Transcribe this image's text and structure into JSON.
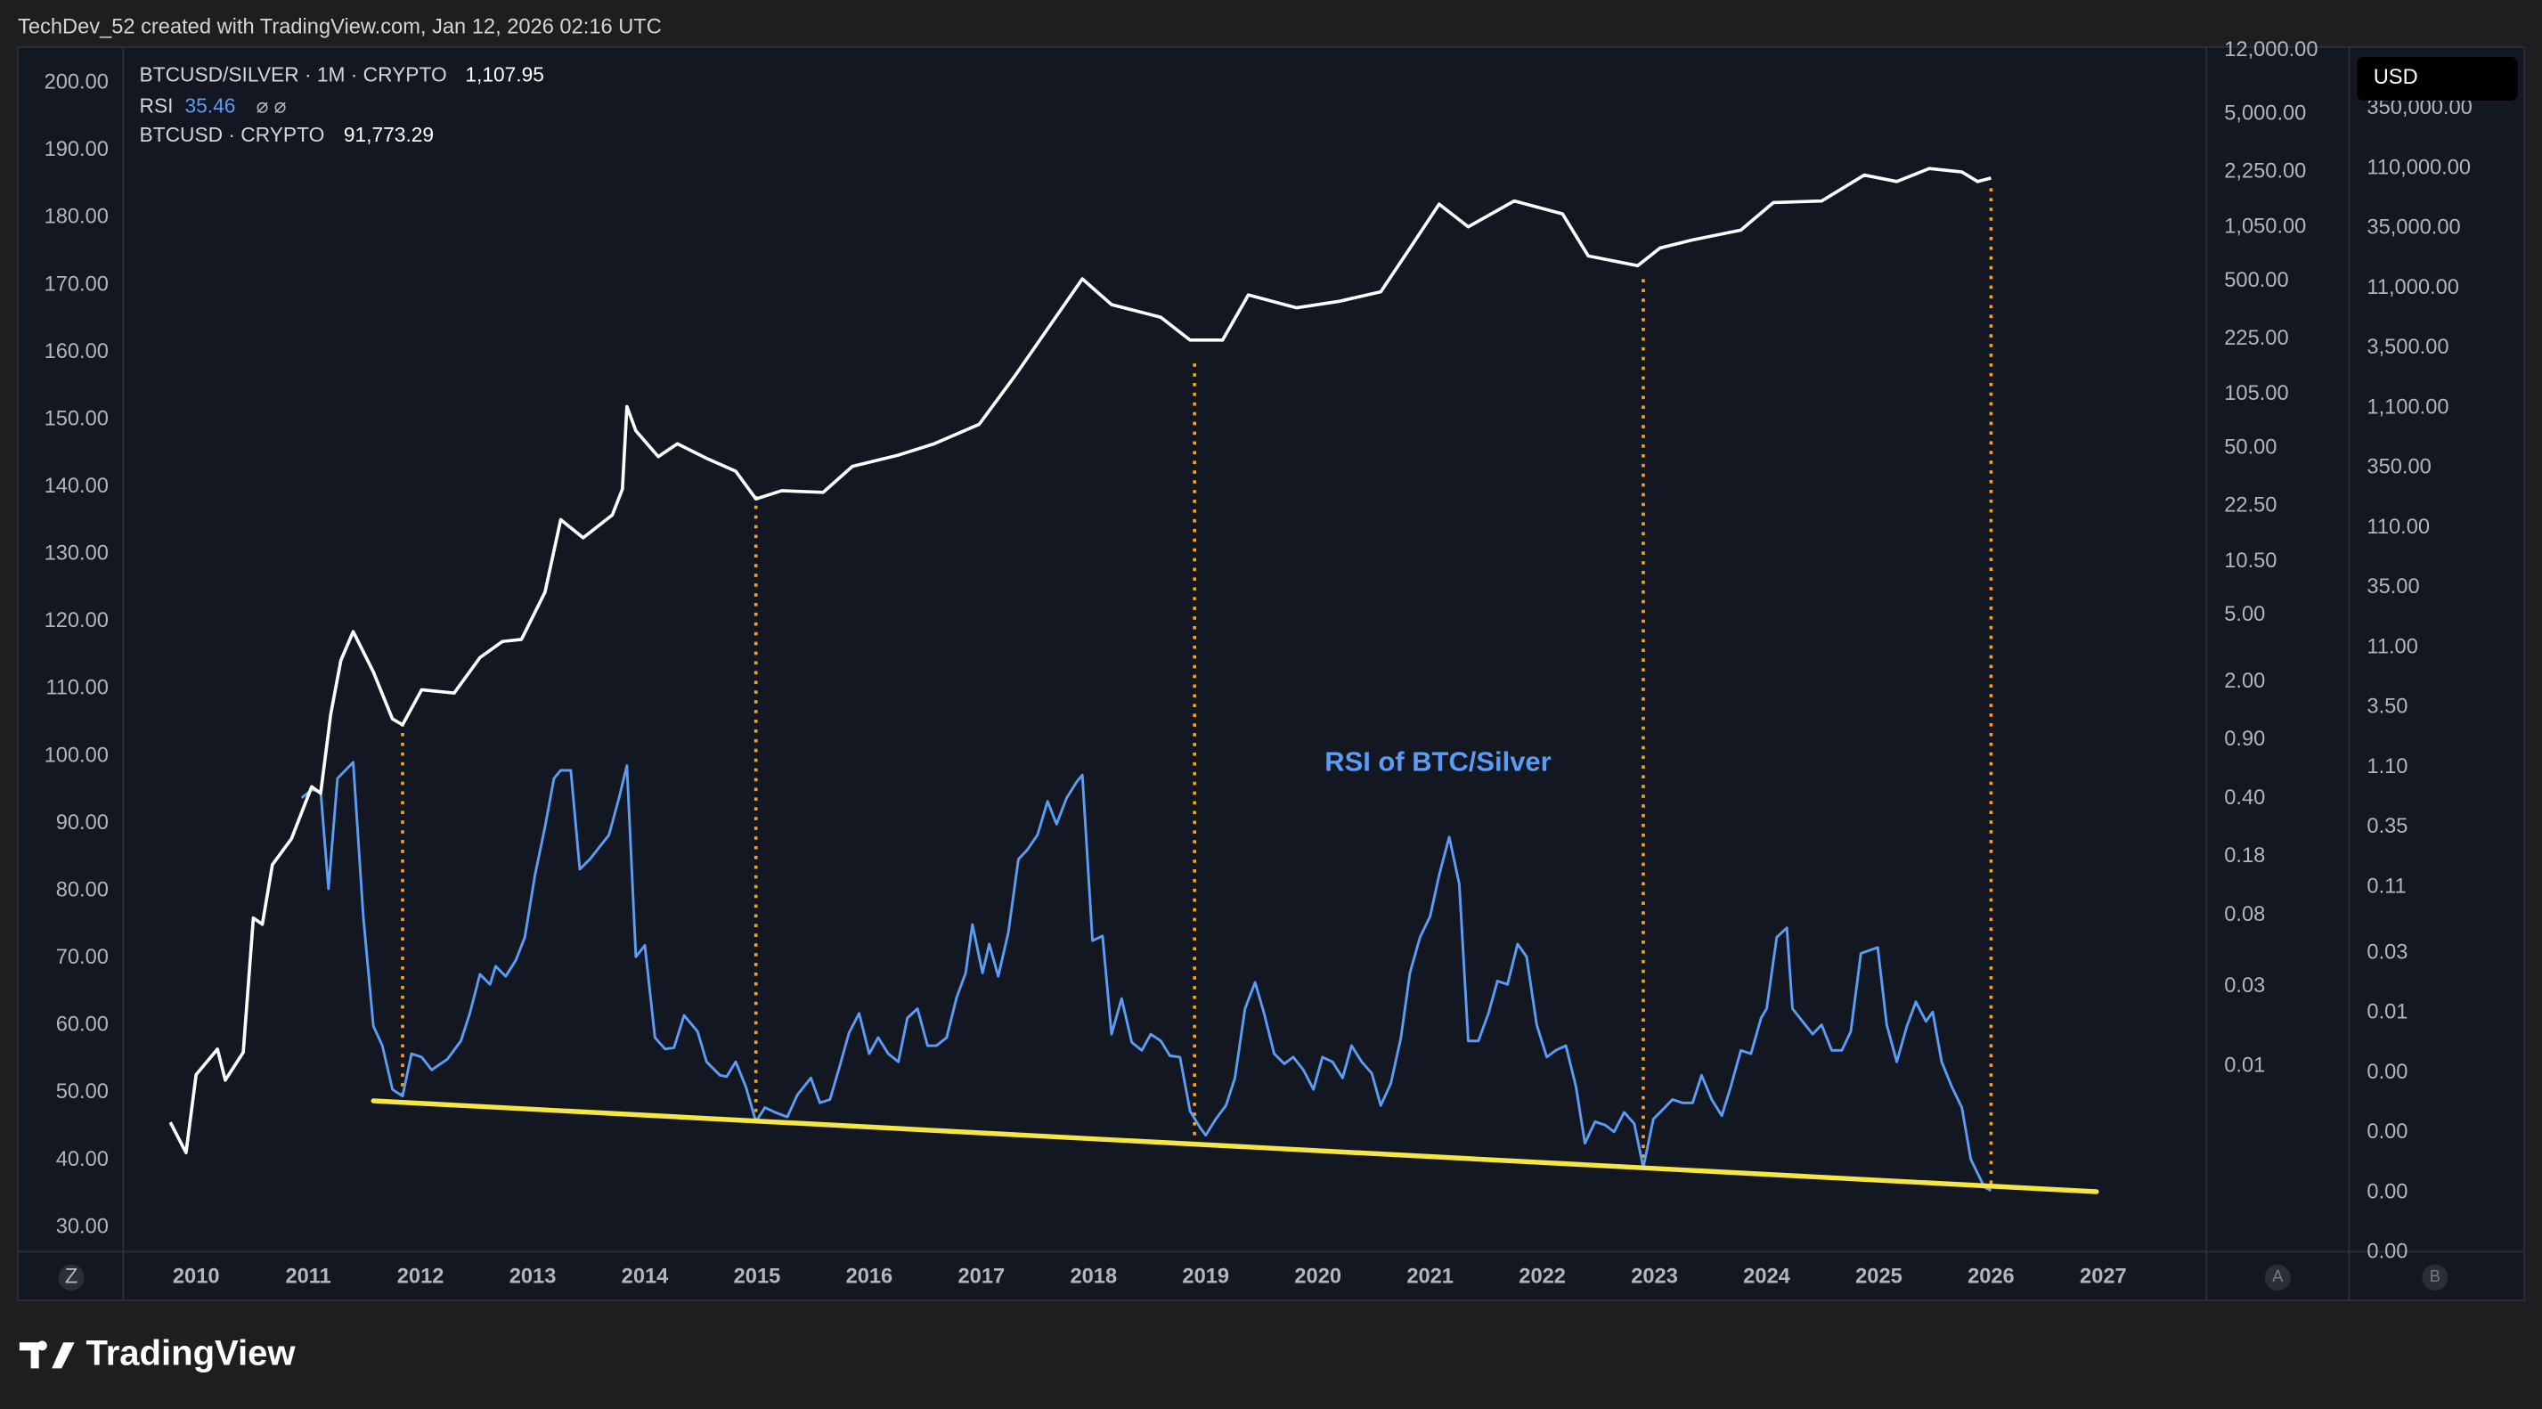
{
  "page": {
    "credit": "TechDev_52 created with TradingView.com, Jan 12, 2026 02:16 UTC",
    "brand": "TradingView",
    "currency_button": "USD",
    "axis_buttons": [
      "Z",
      "A",
      "B"
    ]
  },
  "legend_header": {
    "symbol": "BTCUSD/SILVER · 1M · CRYPTO",
    "symbol_value": "1,107.95",
    "indicator": "RSI",
    "indicator_value": "35.46",
    "indicator_flags": "⌀ ⌀",
    "overlay": "BTCUSD · CRYPTO",
    "overlay_value": "91,773.29"
  },
  "chart_data": {
    "type": "line",
    "annotation": "RSI of BTC/Silver",
    "xlim": [
      2009.35,
      2027.92
    ],
    "xticks": [
      2010,
      2011,
      2012,
      2013,
      2014,
      2015,
      2016,
      2017,
      2018,
      2019,
      2020,
      2021,
      2022,
      2023,
      2024,
      2025,
      2026,
      2027
    ],
    "ylim": [
      26.4,
      205.1
    ],
    "yticks": [
      {
        "value": 30,
        "label": "30.00"
      },
      {
        "value": 40,
        "label": "40.00"
      },
      {
        "value": 50,
        "label": "50.00"
      },
      {
        "value": 60,
        "label": "60.00"
      },
      {
        "value": 70,
        "label": "70.00"
      },
      {
        "value": 80,
        "label": "80.00"
      },
      {
        "value": 90,
        "label": "90.00"
      },
      {
        "value": 100,
        "label": "100.00"
      },
      {
        "value": 110,
        "label": "110.00"
      },
      {
        "value": 120,
        "label": "120.00"
      },
      {
        "value": 130,
        "label": "130.00"
      },
      {
        "value": 140,
        "label": "140.00"
      },
      {
        "value": 150,
        "label": "150.00"
      },
      {
        "value": 160,
        "label": "160.00"
      },
      {
        "value": 170,
        "label": "170.00"
      },
      {
        "value": 180,
        "label": "180.00"
      },
      {
        "value": 190,
        "label": "190.00"
      },
      {
        "value": 200,
        "label": "200.00"
      }
    ],
    "y3lim": [
      0.00078,
      12300
    ],
    "y3log": true,
    "y3ticks": [
      {
        "value": 12000,
        "label": "12,000.00"
      },
      {
        "value": 5000,
        "label": "5,000.00"
      },
      {
        "value": 2250,
        "label": "2,250.00"
      },
      {
        "value": 1050,
        "label": "1,050.00"
      },
      {
        "value": 500,
        "label": "500.00"
      },
      {
        "value": 225,
        "label": "225.00"
      },
      {
        "value": 105,
        "label": "105.00"
      },
      {
        "value": 50,
        "label": "50.00"
      },
      {
        "value": 22.5,
        "label": "22.50"
      },
      {
        "value": 10.5,
        "label": "10.50"
      },
      {
        "value": 5,
        "label": "5.00"
      },
      {
        "value": 2,
        "label": "2.00"
      },
      {
        "value": 0.9,
        "label": "0.90"
      },
      {
        "value": 0.4,
        "label": "0.40"
      },
      {
        "value": 0.18,
        "label": "0.18"
      },
      {
        "value": 0.08,
        "label": "0.08"
      },
      {
        "value": 0.03,
        "label": "0.03"
      },
      {
        "value": 0.01,
        "label": "0.01"
      }
    ],
    "y2lim": [
      0.0001,
      1100000
    ],
    "y2log": true,
    "y2ticks": [
      {
        "value": 350000,
        "label": "350,000.00"
      },
      {
        "value": 110000,
        "label": "110,000.00"
      },
      {
        "value": 35000,
        "label": "35,000.00"
      },
      {
        "value": 11000,
        "label": "11,000.00"
      },
      {
        "value": 3500,
        "label": "3,500.00"
      },
      {
        "value": 1100,
        "label": "1,100.00"
      },
      {
        "value": 350,
        "label": "350.00"
      },
      {
        "value": 110,
        "label": "110.00"
      },
      {
        "value": 35,
        "label": "35.00"
      },
      {
        "value": 11,
        "label": "11.00"
      },
      {
        "value": 3.5,
        "label": "3.50"
      },
      {
        "value": 1.1,
        "label": "1.10"
      },
      {
        "value": 0.35,
        "label": "0.35"
      },
      {
        "value": 0.11,
        "label": "0.11"
      },
      {
        "value": 0.031,
        "label": "0.03"
      },
      {
        "value": 0.0098,
        "label": "0.01"
      },
      {
        "value": 0.0031,
        "label": "0.00"
      },
      {
        "value": 0.00098,
        "label": "0.00"
      },
      {
        "value": 0.00031,
        "label": "0.00"
      },
      {
        "value": 9.8e-05,
        "label": "0.00"
      }
    ],
    "grid": false,
    "series": [
      {
        "name": "RSI",
        "color": "#5b9cf6",
        "axis": "y",
        "x": [
          2010.94,
          2011.03,
          2011.11,
          2011.18,
          2011.26,
          2011.4,
          2011.49,
          2011.58,
          2011.66,
          2011.75,
          2011.84,
          2011.92,
          2012.01,
          2012.1,
          2012.24,
          2012.36,
          2012.44,
          2012.53,
          2012.62,
          2012.67,
          2012.76,
          2012.85,
          2012.93,
          2013.02,
          2013.11,
          2013.19,
          2013.25,
          2013.34,
          2013.42,
          2013.51,
          2013.6,
          2013.68,
          2013.77,
          2013.84,
          2013.92,
          2014.0,
          2014.09,
          2014.18,
          2014.26,
          2014.35,
          2014.47,
          2014.55,
          2014.67,
          2014.73,
          2014.81,
          2014.9,
          2014.99,
          2015.07,
          2015.16,
          2015.27,
          2015.36,
          2015.48,
          2015.56,
          2015.65,
          2015.74,
          2015.82,
          2015.91,
          2016.0,
          2016.08,
          2016.17,
          2016.26,
          2016.34,
          2016.43,
          2016.52,
          2016.6,
          2016.69,
          2016.78,
          2016.86,
          2016.92,
          2017.01,
          2017.07,
          2017.15,
          2017.24,
          2017.33,
          2017.41,
          2017.5,
          2017.59,
          2017.67,
          2017.76,
          2017.85,
          2017.9,
          2017.99,
          2018.08,
          2018.16,
          2018.25,
          2018.34,
          2018.43,
          2018.51,
          2018.6,
          2018.68,
          2018.77,
          2018.86,
          2018.95,
          2019.0,
          2019.09,
          2019.18,
          2019.26,
          2019.35,
          2019.44,
          2019.52,
          2019.61,
          2019.7,
          2019.78,
          2019.87,
          2019.96,
          2020.04,
          2020.13,
          2020.22,
          2020.3,
          2020.39,
          2020.48,
          2020.56,
          2020.65,
          2020.74,
          2020.82,
          2020.91,
          2021.0,
          2021.08,
          2021.17,
          2021.26,
          2021.34,
          2021.43,
          2021.52,
          2021.6,
          2021.69,
          2021.78,
          2021.86,
          2021.95,
          2022.04,
          2022.12,
          2022.21,
          2022.3,
          2022.38,
          2022.47,
          2022.56,
          2022.64,
          2022.73,
          2022.82,
          2022.9,
          2022.99,
          2023.08,
          2023.16,
          2023.25,
          2023.34,
          2023.42,
          2023.51,
          2023.6,
          2023.68,
          2023.77,
          2023.86,
          2023.95,
          2024.0,
          2024.09,
          2024.18,
          2024.23,
          2024.32,
          2024.41,
          2024.49,
          2024.58,
          2024.67,
          2024.75,
          2024.84,
          2024.99,
          2025.07,
          2025.16,
          2025.25,
          2025.33,
          2025.42,
          2025.48,
          2025.56,
          2025.65,
          2025.74,
          2025.82,
          2025.94,
          2026.0
        ],
        "values": [
          93.8,
          95.0,
          94.8,
          80.3,
          96.7,
          99.1,
          76.2,
          59.9,
          57.0,
          50.5,
          49.5,
          55.8,
          55.3,
          53.4,
          55.0,
          57.7,
          61.8,
          67.6,
          66.1,
          68.8,
          67.3,
          69.7,
          73.1,
          82.3,
          89.5,
          96.7,
          97.9,
          97.9,
          83.2,
          84.7,
          86.6,
          88.3,
          93.8,
          98.6,
          70.2,
          71.9,
          58.2,
          56.5,
          56.7,
          61.5,
          59.1,
          54.6,
          52.6,
          52.4,
          54.6,
          50.9,
          45.7,
          47.8,
          47.1,
          46.4,
          49.7,
          52.2,
          48.5,
          49.0,
          54.1,
          58.9,
          61.8,
          55.8,
          58.2,
          55.8,
          54.6,
          61.1,
          62.5,
          57.0,
          57.0,
          58.2,
          64.2,
          67.8,
          75.0,
          67.8,
          72.1,
          67.3,
          73.8,
          84.7,
          86.1,
          88.3,
          93.3,
          89.9,
          93.8,
          96.2,
          97.2,
          72.6,
          73.3,
          58.7,
          64.0,
          57.5,
          56.3,
          58.7,
          57.7,
          55.5,
          55.3,
          47.3,
          44.8,
          43.7,
          46.1,
          48.1,
          52.2,
          62.5,
          66.4,
          61.8,
          55.8,
          54.3,
          55.3,
          53.4,
          50.5,
          55.3,
          54.6,
          52.2,
          57.0,
          54.6,
          52.9,
          48.1,
          51.4,
          58.2,
          67.8,
          73.1,
          76.2,
          82.3,
          88.0,
          81.0,
          57.7,
          57.7,
          61.8,
          66.6,
          66.1,
          72.1,
          70.2,
          60.1,
          55.3,
          56.3,
          57.0,
          50.9,
          42.5,
          45.7,
          45.2,
          44.2,
          47.1,
          45.4,
          38.9,
          46.1,
          47.6,
          49.0,
          48.5,
          48.5,
          52.6,
          49.0,
          46.6,
          50.9,
          56.3,
          55.8,
          61.1,
          62.5,
          73.1,
          74.5,
          62.5,
          60.6,
          58.7,
          60.1,
          56.3,
          56.3,
          59.1,
          70.7,
          71.6,
          60.1,
          54.6,
          59.9,
          63.5,
          60.6,
          62.0,
          54.6,
          50.9,
          47.8,
          40.1,
          36.0,
          35.46
        ]
      },
      {
        "name": "BTCUSD",
        "color": "#ffffff",
        "axis": "y2",
        "x": [
          2009.77,
          2009.91,
          2010.0,
          2010.19,
          2010.26,
          2010.42,
          2010.51,
          2010.59,
          2010.68,
          2010.85,
          2011.03,
          2011.11,
          2011.2,
          2011.29,
          2011.4,
          2011.58,
          2011.75,
          2011.84,
          2012.01,
          2012.3,
          2012.53,
          2012.73,
          2012.9,
          2013.11,
          2013.25,
          2013.45,
          2013.71,
          2013.8,
          2013.84,
          2013.92,
          2014.12,
          2014.29,
          2014.55,
          2014.81,
          2014.99,
          2015.22,
          2015.59,
          2015.85,
          2016.26,
          2016.58,
          2016.98,
          2017.3,
          2017.56,
          2017.9,
          2018.16,
          2018.6,
          2018.86,
          2019.15,
          2019.38,
          2019.81,
          2020.19,
          2020.56,
          2020.85,
          2021.08,
          2021.34,
          2021.75,
          2022.18,
          2022.41,
          2022.85,
          2023.05,
          2023.34,
          2023.77,
          2024.06,
          2024.49,
          2024.87,
          2025.16,
          2025.45,
          2025.74,
          2025.88,
          2026.0
        ],
        "values": [
          0.0012,
          0.00067,
          0.003,
          0.0049,
          0.0027,
          0.0046,
          0.061,
          0.054,
          0.17,
          0.28,
          0.76,
          0.67,
          3.07,
          8.6,
          15,
          6.9,
          2.8,
          2.5,
          4.9,
          4.6,
          9.1,
          12.4,
          12.9,
          32,
          129,
          91,
          141,
          232,
          1135,
          711,
          433,
          555,
          419,
          327,
          192,
          225,
          218,
          359,
          446,
          555,
          805,
          2050,
          4600,
          13200,
          8050,
          6300,
          4070,
          4070,
          9700,
          7570,
          8570,
          10300,
          26200,
          55500,
          35900,
          59000,
          46000,
          20500,
          17000,
          23900,
          27900,
          33700,
          57200,
          59000,
          97000,
          85700,
          110000,
          103000,
          85700,
          91773.29
        ]
      }
    ],
    "trendline": {
      "color": "#f5e642",
      "x": [
        2011.58,
        2026.94
      ],
      "y": [
        48.8,
        35.3
      ]
    },
    "vertical_lines": {
      "color": "#f7a21b",
      "x": [
        2011.84,
        2014.99,
        2018.9,
        2022.9,
        2026.0
      ],
      "y_from": [
        49.5,
        45.7,
        43.7,
        38.9,
        36.5
      ],
      "y_to": [
        104.6,
        138.8,
        158.8,
        171.3,
        185.1
      ]
    }
  }
}
